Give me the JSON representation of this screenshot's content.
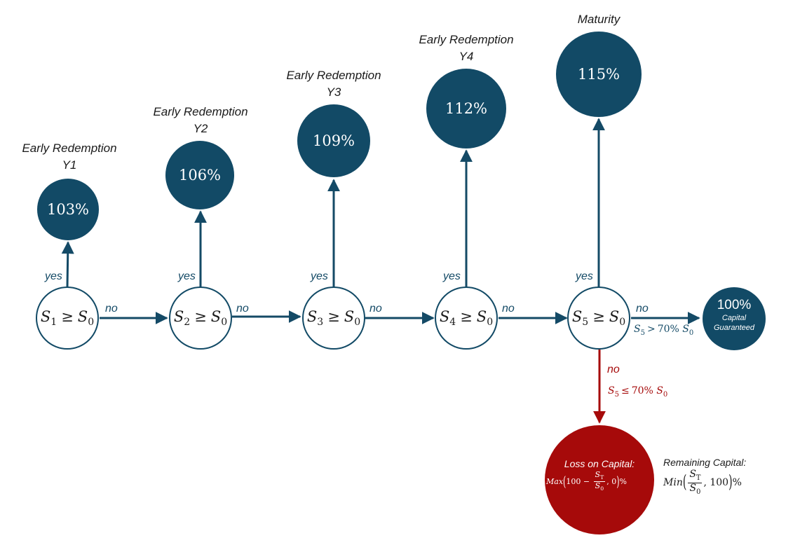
{
  "colors": {
    "node_fill": "#124a66",
    "loss_fill": "#a60a0a",
    "arrow": "#144a66",
    "loss_arrow": "#a60a0a"
  },
  "payouts": [
    {
      "title_line1": "Early Redemption",
      "title_line2": "Y1",
      "value": "103%"
    },
    {
      "title_line1": "Early Redemption",
      "title_line2": "Y2",
      "value": "106%"
    },
    {
      "title_line1": "Early Redemption",
      "title_line2": "Y3",
      "value": "109%"
    },
    {
      "title_line1": "Early Redemption",
      "title_line2": "Y4",
      "value": "112%"
    },
    {
      "title_line1": "Maturity",
      "title_line2": "",
      "value": "115%"
    }
  ],
  "conditions": [
    {
      "sym": "S",
      "sub": "1",
      "op": "≥",
      "rhs": "S",
      "rhs_sub": "0"
    },
    {
      "sym": "S",
      "sub": "2",
      "op": "≥",
      "rhs": "S",
      "rhs_sub": "0"
    },
    {
      "sym": "S",
      "sub": "3",
      "op": "≥",
      "rhs": "S",
      "rhs_sub": "0"
    },
    {
      "sym": "S",
      "sub": "4",
      "op": "≥",
      "rhs": "S",
      "rhs_sub": "0"
    },
    {
      "sym": "S",
      "sub": "5",
      "op": "≥",
      "rhs": "S",
      "rhs_sub": "0"
    }
  ],
  "labels": {
    "yes": "yes",
    "no": "no"
  },
  "guaranteed": {
    "value": "100%",
    "line1": "Capital",
    "line2": "Guaranteed",
    "condition": {
      "sym": "S",
      "sub": "5",
      "op": ">",
      "pct": "70%",
      "rhs": "S",
      "rhs_sub": "0"
    }
  },
  "loss": {
    "no_label": "no",
    "condition": {
      "sym": "S",
      "sub": "5",
      "op": "≤",
      "pct": "70%",
      "rhs": "S",
      "rhs_sub": "0"
    },
    "title": "Loss on Capital:",
    "formula": {
      "fn": "Max",
      "a": "100",
      "minus": "−",
      "num": "S",
      "num_sub": "T",
      "den": "S",
      "den_sub": "0",
      "b": "0",
      "pct": "%"
    }
  },
  "remaining": {
    "title": "Remaining Capital:",
    "formula": {
      "fn": "Min",
      "num": "S",
      "num_sub": "T",
      "den": "S",
      "den_sub": "0",
      "b": "100",
      "pct": "%"
    }
  }
}
